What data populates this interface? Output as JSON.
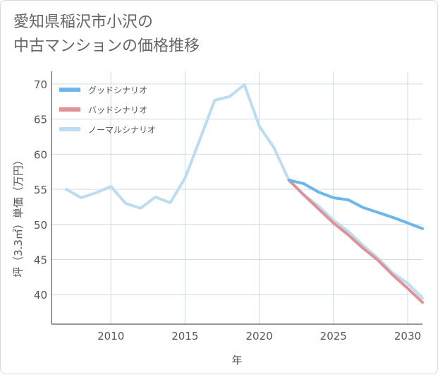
{
  "title": {
    "line1": "愛知県稲沢市小沢の",
    "line2": "中古マンションの価格推移"
  },
  "chart_data": {
    "type": "line",
    "xlabel": "年",
    "ylabel": "坪（3.3㎡）単価（万円）",
    "xlim": [
      2006,
      2031
    ],
    "ylim": [
      35.8,
      71.8
    ],
    "xticks": [
      2010,
      2015,
      2020,
      2025,
      2030
    ],
    "yticks": [
      40,
      45,
      50,
      55,
      60,
      65,
      70
    ],
    "grid": true,
    "legend_position": "top-left",
    "series": [
      {
        "name": "グッドシナリオ",
        "color": "#6cb6ec",
        "x": [
          2022,
          2023,
          2024,
          2025,
          2026,
          2027,
          2028,
          2029,
          2030,
          2031
        ],
        "y": [
          56.3,
          55.8,
          54.6,
          53.8,
          53.5,
          52.4,
          51.7,
          51.0,
          50.2,
          49.4
        ]
      },
      {
        "name": "バッドシナリオ",
        "color": "#e09196",
        "x": [
          2022,
          2023,
          2024,
          2025,
          2026,
          2027,
          2028,
          2029,
          2030,
          2031
        ],
        "y": [
          56.3,
          54.2,
          52.2,
          50.2,
          48.5,
          46.6,
          44.9,
          42.8,
          40.9,
          38.9
        ]
      },
      {
        "name": "ノーマルシナリオ",
        "color": "#bcdcef",
        "x": [
          2007,
          2008,
          2009,
          2010,
          2011,
          2012,
          2013,
          2014,
          2015,
          2016,
          2017,
          2018,
          2019,
          2020,
          2021,
          2022,
          2023,
          2024,
          2025,
          2026,
          2027,
          2028,
          2029,
          2030,
          2031
        ],
        "y": [
          55.0,
          53.8,
          54.5,
          55.4,
          53.0,
          52.3,
          53.9,
          53.1,
          56.6,
          62.1,
          67.7,
          68.2,
          69.9,
          64.0,
          60.9,
          56.3,
          54.2,
          52.6,
          50.6,
          49.0,
          47.0,
          45.2,
          43.1,
          41.6,
          39.5
        ]
      }
    ]
  }
}
